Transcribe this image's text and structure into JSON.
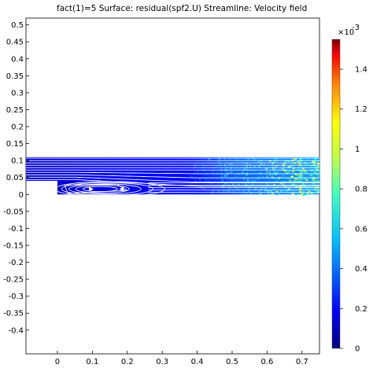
{
  "chart_data": {
    "type": "heatmap",
    "title": "fact(1)=5   Surface: residual(spf2.U)   Streamline: Velocity field",
    "xlim": [
      -0.09,
      0.75
    ],
    "ylim": [
      -0.47,
      0.52
    ],
    "x_ticks": [
      "0",
      "0.1",
      "0.2",
      "0.3",
      "0.4",
      "0.5",
      "0.6",
      "0.7"
    ],
    "x_tick_values": [
      0,
      0.1,
      0.2,
      0.3,
      0.4,
      0.5,
      0.6,
      0.7
    ],
    "y_ticks": [
      "0.5",
      "0.45",
      "0.4",
      "0.35",
      "0.3",
      "0.25",
      "0.2",
      "0.15",
      "0.1",
      "0.05",
      "0",
      "-0.05",
      "-0.1",
      "-0.15",
      "-0.2",
      "-0.25",
      "-0.3",
      "-0.35",
      "-0.4"
    ],
    "y_tick_values": [
      0.5,
      0.45,
      0.4,
      0.35,
      0.3,
      0.25,
      0.2,
      0.15,
      0.1,
      0.05,
      0,
      -0.05,
      -0.1,
      -0.15,
      -0.2,
      -0.25,
      -0.3,
      -0.35,
      -0.4
    ],
    "geometry": {
      "upper_channel": {
        "x": [
          -0.09,
          0.75
        ],
        "y": [
          0.04,
          0.11
        ]
      },
      "lower_channel": {
        "x": [
          0.0,
          0.75
        ],
        "y": [
          0.0,
          0.04
        ]
      }
    },
    "colorbar": {
      "multiplier": "×10",
      "exponent": "-3",
      "min": 0,
      "max": 1.55,
      "ticks": [
        "1.4",
        "1.2",
        "1",
        "0.8",
        "0.6",
        "0.4",
        "0.2",
        "0"
      ],
      "tick_values": [
        1.4,
        1.2,
        1.0,
        0.8,
        0.6,
        0.4,
        0.2,
        0
      ],
      "colormap": "rainbow"
    },
    "grid": false,
    "streamlines": "white"
  }
}
